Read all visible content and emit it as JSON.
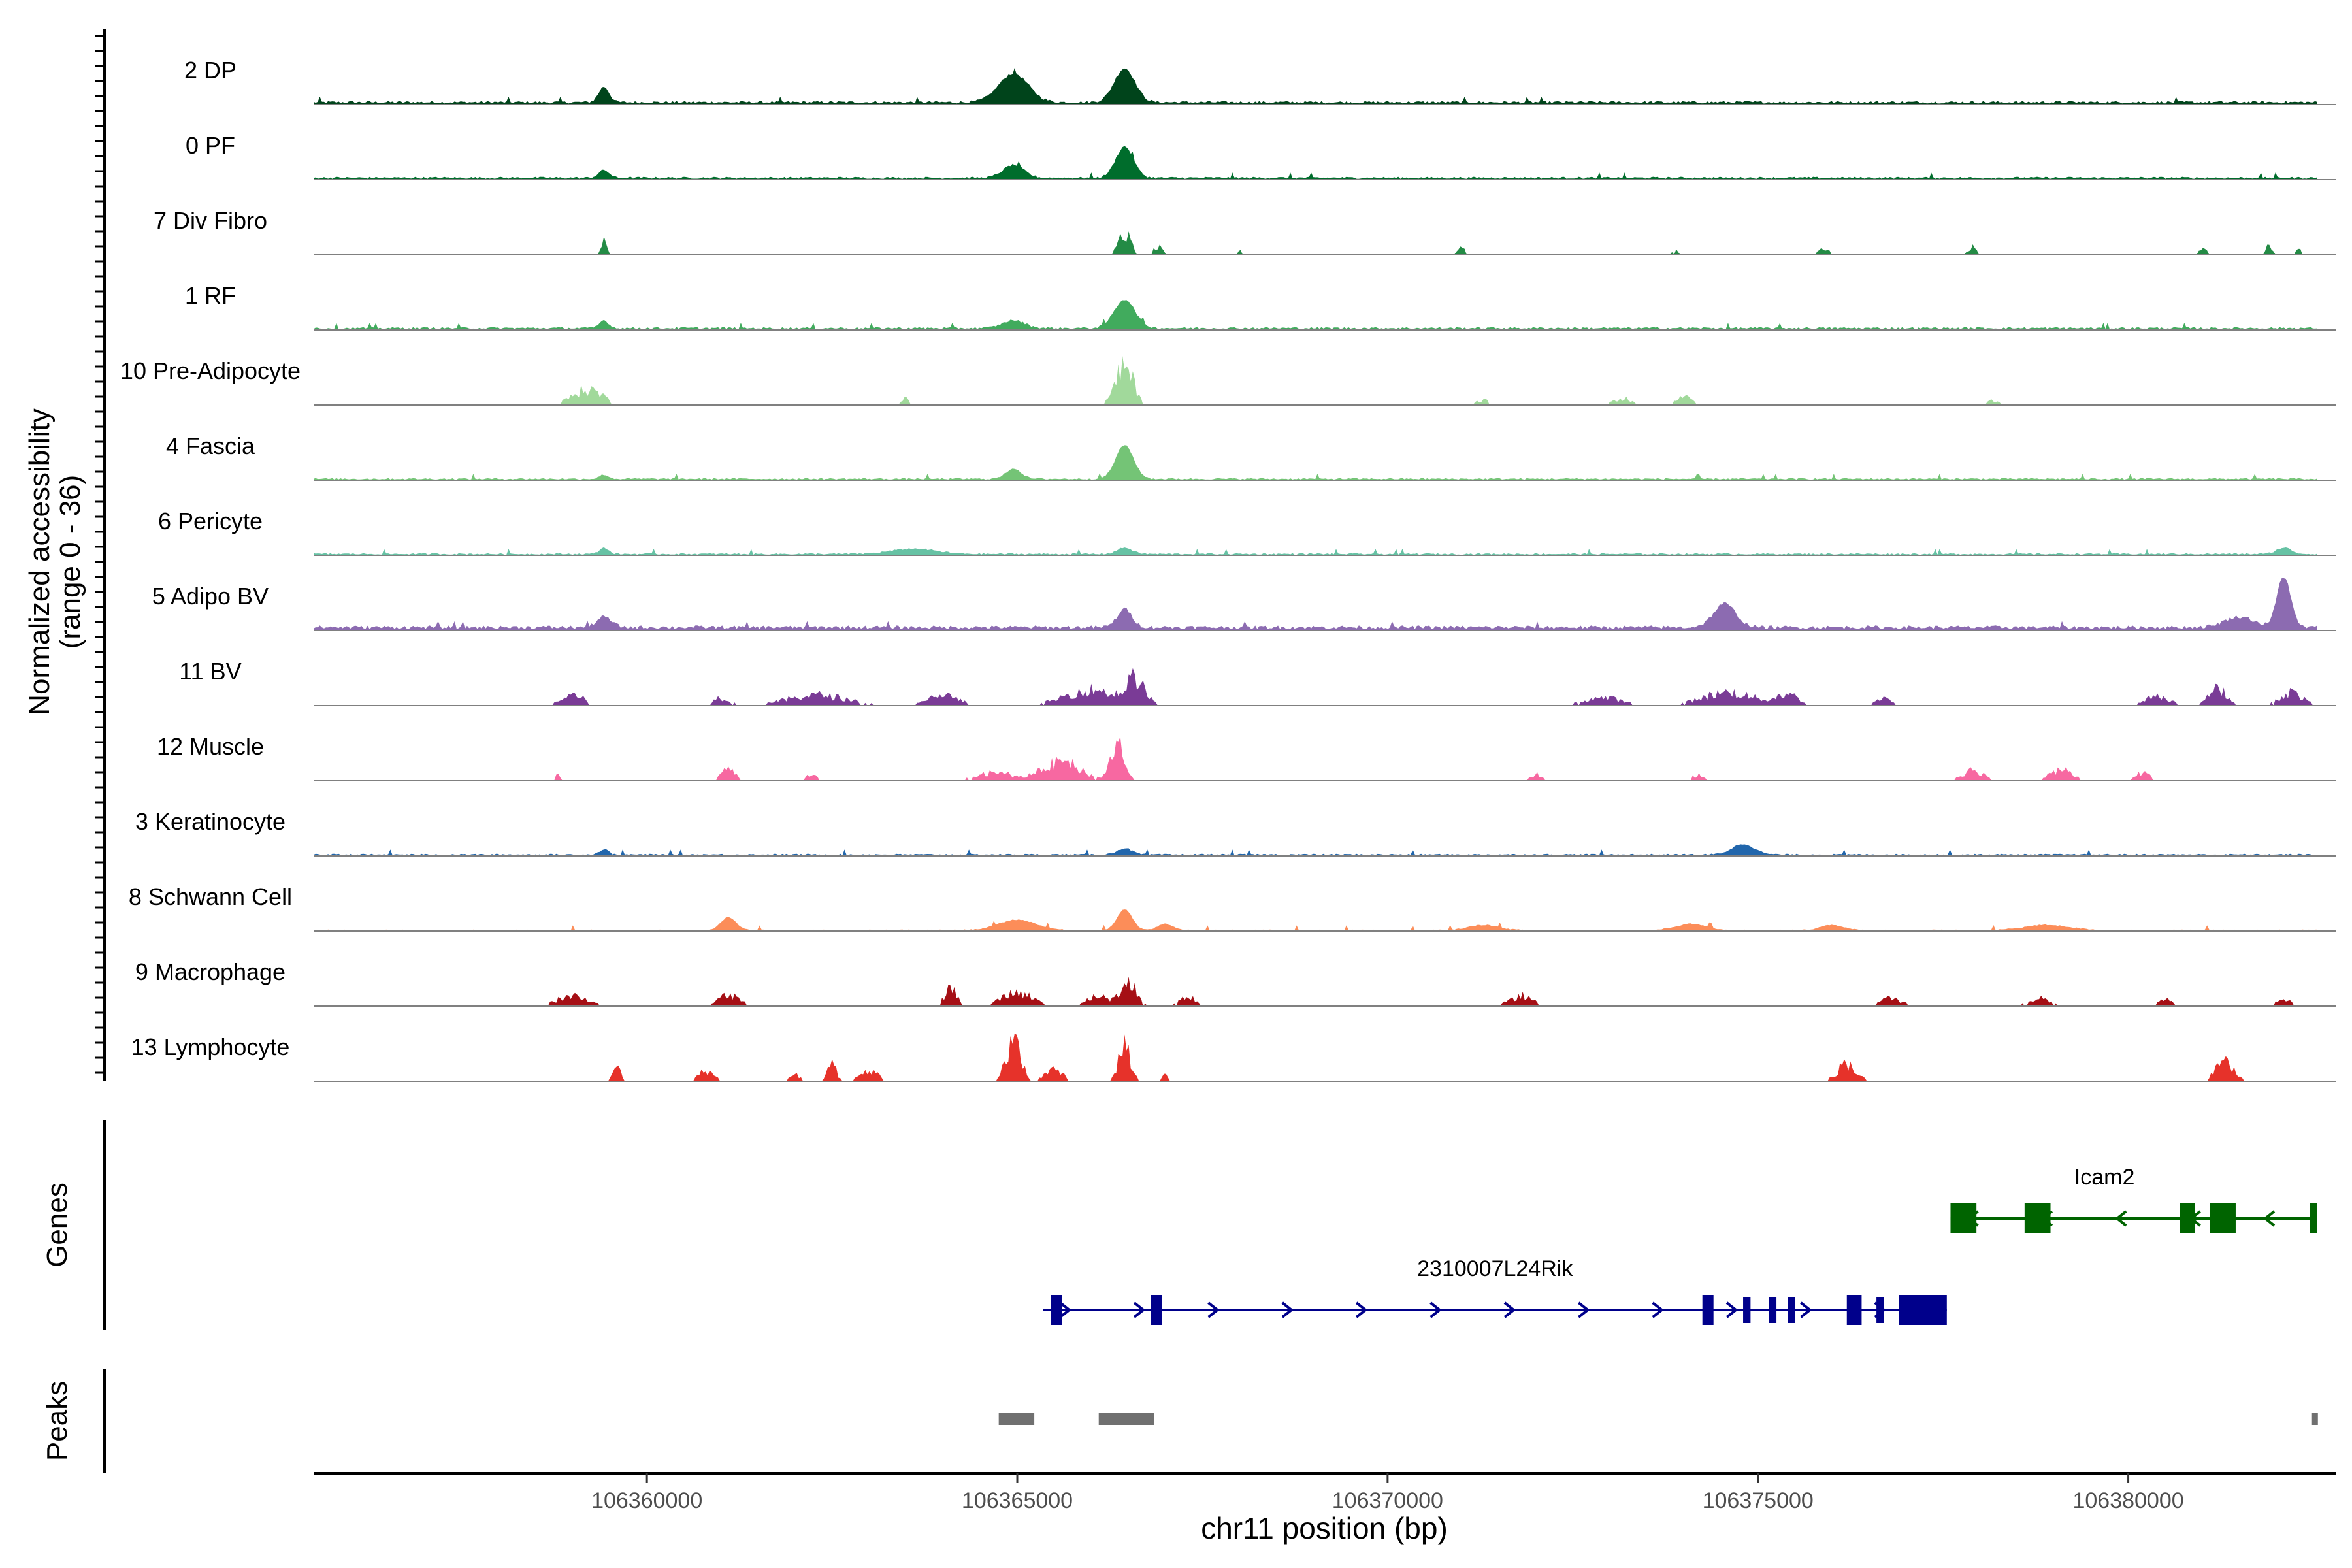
{
  "chart_data": {
    "type": "area",
    "title": "",
    "ylabel": "Normalized accessibility",
    "ylabel_range": "(range 0 - 36)",
    "ylim": [
      0,
      36
    ],
    "xlabel": "chr11 position (bp)",
    "xlim": [
      106355500,
      106382800
    ],
    "x_ticks": [
      106360000,
      106365000,
      106370000,
      106375000,
      106380000
    ],
    "x_tick_labels": [
      "106360000",
      "106365000",
      "106370000",
      "106375000",
      "106380000"
    ],
    "tracks": [
      {
        "name": "2 DP",
        "color": "#00441b",
        "peaks": [
          [
            106359420,
            0.3,
            70
          ],
          [
            106364950,
            0.55,
            200
          ],
          [
            106366450,
            0.65,
            140
          ]
        ],
        "style": "cont",
        "base": 0.05
      },
      {
        "name": "0 PF",
        "color": "#006d2c",
        "peaks": [
          [
            106359420,
            0.15,
            70
          ],
          [
            106364950,
            0.25,
            140
          ],
          [
            106366450,
            0.6,
            120
          ]
        ],
        "style": "cont",
        "base": 0.04
      },
      {
        "name": "7 Div Fibro",
        "color": "#238b45",
        "peaks": [
          [
            106359420,
            0.25,
            40
          ],
          [
            106366450,
            0.4,
            80
          ],
          [
            106366900,
            0.15,
            60
          ],
          [
            106368000,
            0.1,
            50
          ],
          [
            106371000,
            0.12,
            50
          ],
          [
            106373900,
            0.08,
            50
          ],
          [
            106375900,
            0.12,
            80
          ],
          [
            106377900,
            0.15,
            60
          ],
          [
            106381000,
            0.12,
            60
          ],
          [
            106381900,
            0.15,
            60
          ],
          [
            106382300,
            0.1,
            40
          ]
        ],
        "style": "sparse",
        "base": 0.0
      },
      {
        "name": "1 RF",
        "color": "#41ab5d",
        "peaks": [
          [
            106359420,
            0.15,
            60
          ],
          [
            106364950,
            0.15,
            150
          ],
          [
            106366450,
            0.55,
            140
          ]
        ],
        "style": "cont",
        "base": 0.04
      },
      {
        "name": "10 Pre-Adipocyte",
        "color": "#a1d99b",
        "peaks": [
          [
            106359200,
            0.3,
            200
          ],
          [
            106363500,
            0.12,
            60
          ],
          [
            106366450,
            0.7,
            120
          ],
          [
            106371300,
            0.1,
            100
          ],
          [
            106373200,
            0.12,
            150
          ],
          [
            106374000,
            0.15,
            100
          ],
          [
            106378200,
            0.1,
            80
          ]
        ],
        "style": "sparse",
        "base": 0.0
      },
      {
        "name": "4 Fascia",
        "color": "#74c476",
        "peaks": [
          [
            106359420,
            0.08,
            60
          ],
          [
            106364950,
            0.2,
            100
          ],
          [
            106366450,
            0.65,
            120
          ]
        ],
        "style": "cont",
        "base": 0.03
      },
      {
        "name": "6 Pericyte",
        "color": "#66c2a4",
        "peaks": [
          [
            106359420,
            0.12,
            60
          ],
          [
            106363600,
            0.1,
            300
          ],
          [
            106366450,
            0.12,
            100
          ],
          [
            106382100,
            0.12,
            100
          ]
        ],
        "style": "cont",
        "base": 0.03
      },
      {
        "name": "5 Adipo BV",
        "color": "#8c6bb1",
        "peaks": [
          [
            106359420,
            0.2,
            100
          ],
          [
            106366450,
            0.35,
            100
          ],
          [
            106374550,
            0.45,
            150
          ],
          [
            106381500,
            0.2,
            200
          ],
          [
            106382100,
            1.0,
            90
          ]
        ],
        "style": "cont",
        "base": 0.07
      },
      {
        "name": "11 BV",
        "color": "#7a3b96",
        "peaks": [
          [
            106359000,
            0.2,
            150
          ],
          [
            106361000,
            0.15,
            120
          ],
          [
            106362300,
            0.2,
            400
          ],
          [
            106364000,
            0.2,
            200
          ],
          [
            106366000,
            0.3,
            350
          ],
          [
            106366600,
            0.45,
            120
          ],
          [
            106372900,
            0.15,
            250
          ],
          [
            106374600,
            0.25,
            350
          ],
          [
            106375400,
            0.2,
            150
          ],
          [
            106376700,
            0.15,
            100
          ],
          [
            106380400,
            0.2,
            150
          ],
          [
            106381200,
            0.35,
            120
          ],
          [
            106382200,
            0.25,
            150
          ]
        ],
        "style": "sparse",
        "base": 0.0
      },
      {
        "name": "12 Muscle",
        "color": "#f768a1",
        "peaks": [
          [
            106358800,
            0.1,
            50
          ],
          [
            106361100,
            0.2,
            100
          ],
          [
            106362200,
            0.12,
            80
          ],
          [
            106364700,
            0.15,
            250
          ],
          [
            106365600,
            0.35,
            250
          ],
          [
            106366350,
            0.7,
            90
          ],
          [
            106372000,
            0.12,
            80
          ],
          [
            106374200,
            0.12,
            80
          ],
          [
            106377900,
            0.2,
            150
          ],
          [
            106379100,
            0.2,
            150
          ],
          [
            106380200,
            0.15,
            100
          ]
        ],
        "style": "sparse",
        "base": 0.0
      },
      {
        "name": "3 Keratinocyte",
        "color": "#2166ac",
        "peaks": [
          [
            106359420,
            0.1,
            60
          ],
          [
            106366450,
            0.12,
            100
          ],
          [
            106374800,
            0.2,
            150
          ]
        ],
        "style": "cont",
        "base": 0.03
      },
      {
        "name": "8 Schwann Cell",
        "color": "#fc8d59",
        "peaks": [
          [
            106361100,
            0.25,
            100
          ],
          [
            106365000,
            0.2,
            250
          ],
          [
            106366450,
            0.4,
            100
          ],
          [
            106367000,
            0.12,
            100
          ],
          [
            106371300,
            0.1,
            200
          ],
          [
            106374100,
            0.12,
            200
          ],
          [
            106376000,
            0.1,
            150
          ],
          [
            106378900,
            0.1,
            300
          ]
        ],
        "style": "cont",
        "base": 0.02
      },
      {
        "name": "9 Macrophage",
        "color": "#a50f15",
        "peaks": [
          [
            106359000,
            0.2,
            200
          ],
          [
            106361100,
            0.2,
            150
          ],
          [
            106364100,
            0.35,
            80
          ],
          [
            106365000,
            0.25,
            200
          ],
          [
            106366100,
            0.2,
            150
          ],
          [
            106366500,
            0.5,
            100
          ],
          [
            106367300,
            0.2,
            100
          ],
          [
            106371800,
            0.2,
            150
          ],
          [
            106376800,
            0.15,
            150
          ],
          [
            106378800,
            0.15,
            150
          ],
          [
            106380500,
            0.15,
            100
          ],
          [
            106382100,
            0.15,
            100
          ]
        ],
        "style": "sparse",
        "base": 0.0
      },
      {
        "name": "13 Lymphocyte",
        "color": "#e6322a",
        "peaks": [
          [
            106359600,
            0.35,
            50
          ],
          [
            106360800,
            0.2,
            100
          ],
          [
            106362000,
            0.15,
            60
          ],
          [
            106362500,
            0.3,
            60
          ],
          [
            106363000,
            0.2,
            120
          ],
          [
            106364950,
            0.75,
            100
          ],
          [
            106365500,
            0.2,
            120
          ],
          [
            106366450,
            0.7,
            80
          ],
          [
            106367000,
            0.15,
            40
          ],
          [
            106376200,
            0.35,
            120
          ],
          [
            106381300,
            0.35,
            120
          ]
        ],
        "style": "sparse",
        "base": 0.0
      }
    ],
    "genes": [
      {
        "name": "Icam2",
        "strand": "-",
        "start": 106377600,
        "end": 106382550,
        "color": "#006400",
        "exons": [
          [
            106377600,
            106377950,
            "thick"
          ],
          [
            106378600,
            106378950,
            "thick"
          ],
          [
            106380700,
            106380900,
            "thick"
          ],
          [
            106381100,
            106381450,
            "thick"
          ],
          [
            106382450,
            106382550,
            "thick"
          ]
        ]
      },
      {
        "name": "2310007L24Rik",
        "strand": "+",
        "start": 106365350,
        "end": 106377550,
        "color": "#00008b",
        "exons": [
          [
            106365450,
            106365600,
            "thick"
          ],
          [
            106366800,
            106366950,
            "thick"
          ],
          [
            106374250,
            106374400,
            "thick"
          ],
          [
            106374800,
            106374900,
            "thin"
          ],
          [
            106375150,
            106375250,
            "thin"
          ],
          [
            106375400,
            106375500,
            "thin"
          ],
          [
            106376200,
            106376400,
            "thick"
          ],
          [
            106376600,
            106376700,
            "thin"
          ],
          [
            106376900,
            106377550,
            "thick"
          ]
        ]
      }
    ],
    "peak_regions": [
      [
        106364750,
        106365230
      ],
      [
        106366100,
        106366850
      ],
      [
        106382480,
        106382560
      ]
    ],
    "panel_labels": {
      "genes": "Genes",
      "peaks": "Peaks"
    }
  }
}
